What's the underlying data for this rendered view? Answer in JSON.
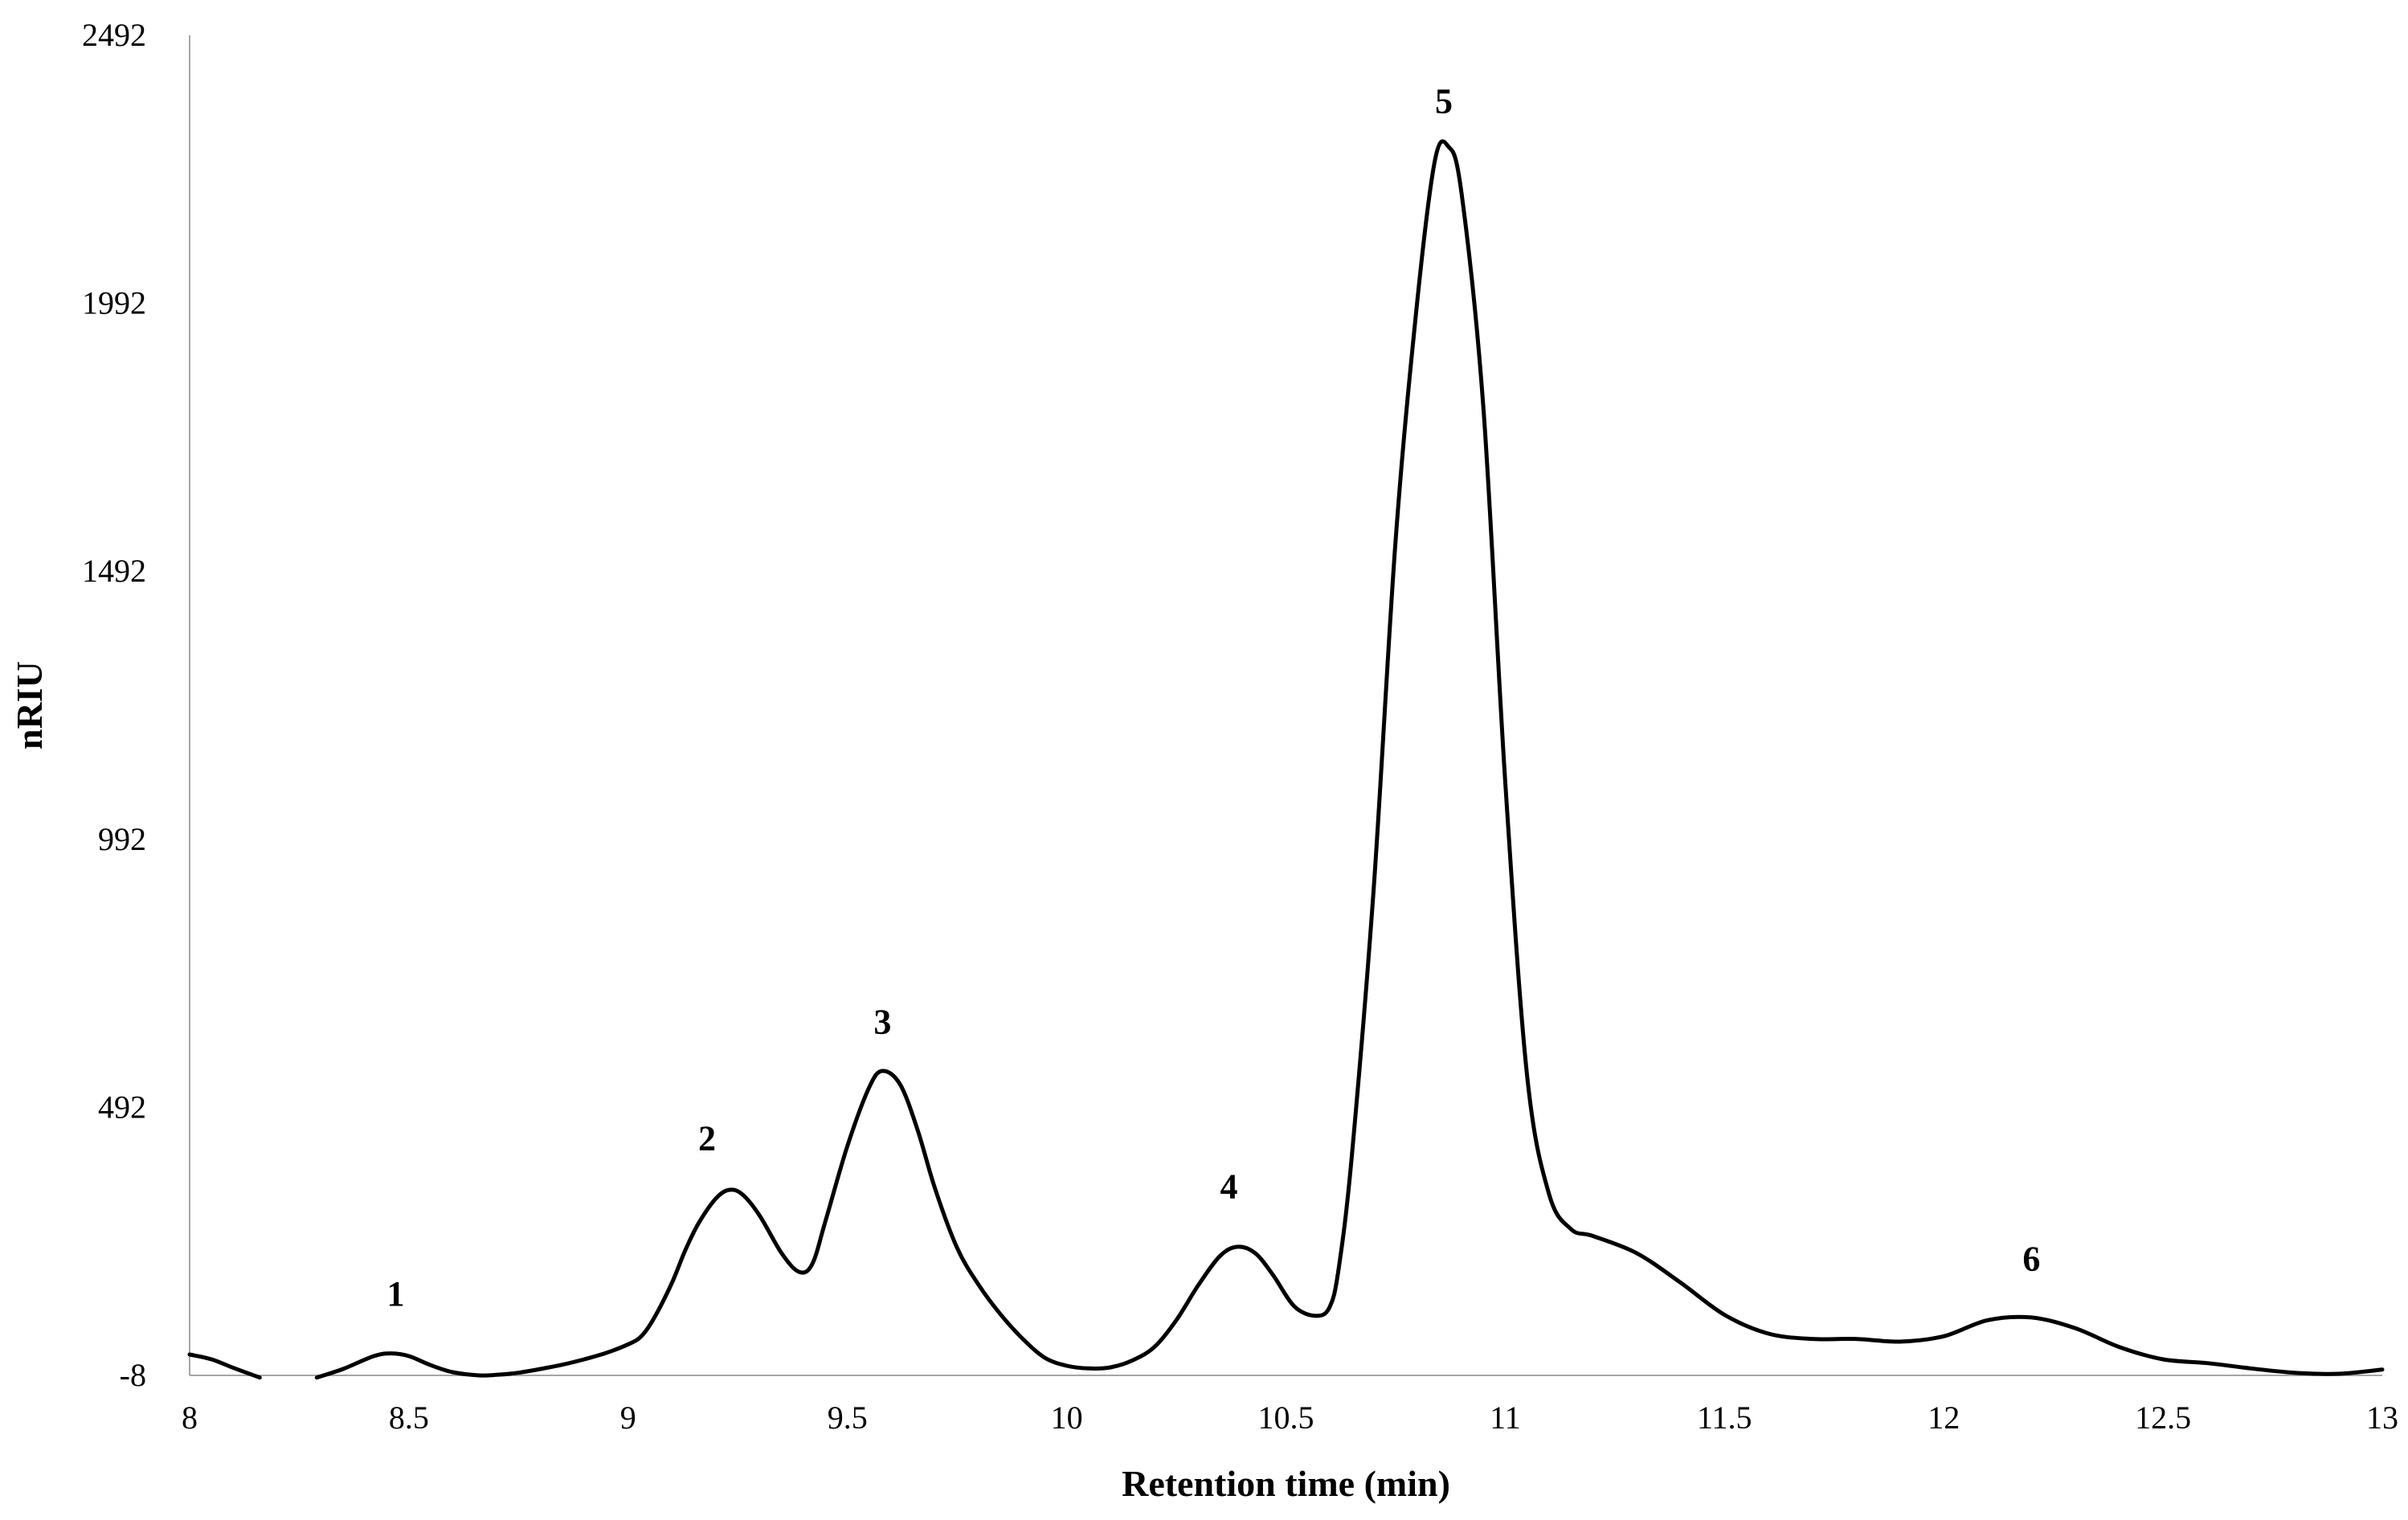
{
  "chart_data": {
    "type": "line",
    "title": "",
    "xlabel": "Retention time (min)",
    "ylabel": "nRIU",
    "xlim": [
      8,
      13
    ],
    "ylim": [
      -8,
      2492
    ],
    "x_ticks": [
      8,
      8.5,
      9,
      9.5,
      10,
      10.5,
      11,
      11.5,
      12,
      12.5,
      13
    ],
    "x_tick_labels": [
      "8",
      "8.5",
      "9",
      "9.5",
      "10",
      "10.5",
      "11",
      "11.5",
      "12",
      "12.5",
      "13"
    ],
    "y_ticks": [
      -8,
      492,
      992,
      1492,
      1992,
      2492
    ],
    "y_tick_labels": [
      "-8",
      "492",
      "992",
      "1492",
      "1992",
      "2492"
    ],
    "grid": false,
    "legend": "none",
    "line_color": "#000000",
    "series": [
      {
        "segments": [
          [
            [
              8.0,
              31
            ],
            [
              8.05,
              22
            ],
            [
              8.1,
              6
            ],
            [
              8.16,
              -12
            ]
          ],
          [
            [
              8.29,
              -12
            ],
            [
              8.35,
              4
            ],
            [
              8.42,
              28
            ],
            [
              8.46,
              33
            ],
            [
              8.5,
              28
            ],
            [
              8.55,
              11
            ],
            [
              8.6,
              -2
            ],
            [
              8.66,
              -8
            ],
            [
              8.7,
              -7
            ],
            [
              8.75,
              -3
            ],
            [
              8.8,
              4
            ],
            [
              8.85,
              12
            ],
            [
              8.9,
              22
            ],
            [
              8.95,
              34
            ],
            [
              9.0,
              50
            ],
            [
              9.03,
              65
            ],
            [
              9.06,
              100
            ],
            [
              9.1,
              165
            ],
            [
              9.13,
              225
            ],
            [
              9.16,
              275
            ],
            [
              9.2,
              322
            ],
            [
              9.23,
              338
            ],
            [
              9.26,
              330
            ],
            [
              9.3,
              290
            ],
            [
              9.35,
              220
            ],
            [
              9.39,
              185
            ],
            [
              9.42,
              200
            ],
            [
              9.45,
              280
            ],
            [
              9.5,
              420
            ],
            [
              9.55,
              530
            ],
            [
              9.58,
              560
            ],
            [
              9.62,
              535
            ],
            [
              9.66,
              450
            ],
            [
              9.7,
              340
            ],
            [
              9.75,
              230
            ],
            [
              9.8,
              160
            ],
            [
              9.85,
              105
            ],
            [
              9.9,
              60
            ],
            [
              9.95,
              25
            ],
            [
              10.0,
              10
            ],
            [
              10.05,
              5
            ],
            [
              10.1,
              7
            ],
            [
              10.15,
              20
            ],
            [
              10.2,
              45
            ],
            [
              10.25,
              95
            ],
            [
              10.3,
              160
            ],
            [
              10.35,
              215
            ],
            [
              10.39,
              232
            ],
            [
              10.43,
              220
            ],
            [
              10.47,
              180
            ],
            [
              10.52,
              120
            ],
            [
              10.57,
              103
            ],
            [
              10.6,
              120
            ],
            [
              10.62,
              190
            ],
            [
              10.65,
              400
            ],
            [
              10.7,
              900
            ],
            [
              10.75,
              1550
            ],
            [
              10.8,
              2000
            ],
            [
              10.84,
              2260
            ],
            [
              10.87,
              2285
            ],
            [
              10.9,
              2200
            ],
            [
              10.95,
              1800
            ],
            [
              11.0,
              1100
            ],
            [
              11.05,
              550
            ],
            [
              11.1,
              330
            ],
            [
              11.15,
              265
            ],
            [
              11.2,
              252
            ],
            [
              11.3,
              220
            ],
            [
              11.4,
              165
            ],
            [
              11.5,
              105
            ],
            [
              11.6,
              70
            ],
            [
              11.7,
              60
            ],
            [
              11.8,
              60
            ],
            [
              11.9,
              55
            ],
            [
              12.0,
              65
            ],
            [
              12.1,
              95
            ],
            [
              12.2,
              100
            ],
            [
              12.3,
              80
            ],
            [
              12.4,
              45
            ],
            [
              12.5,
              22
            ],
            [
              12.6,
              15
            ],
            [
              12.7,
              5
            ],
            [
              12.8,
              -3
            ],
            [
              12.9,
              -5
            ],
            [
              13.0,
              3
            ]
          ]
        ]
      }
    ],
    "annotations": [
      {
        "text": "1",
        "x": 8.47,
        "y": 145
      },
      {
        "text": "2",
        "x": 9.18,
        "y": 435
      },
      {
        "text": "3",
        "x": 9.58,
        "y": 652
      },
      {
        "text": "4",
        "x": 10.37,
        "y": 345
      },
      {
        "text": "5",
        "x": 10.86,
        "y": 2370
      },
      {
        "text": "6",
        "x": 12.2,
        "y": 210
      }
    ]
  }
}
